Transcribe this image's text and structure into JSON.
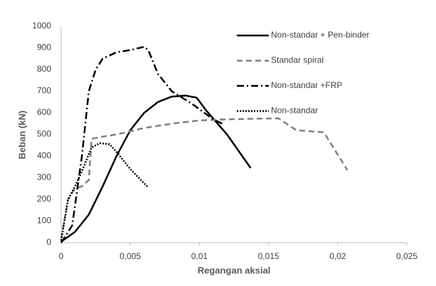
{
  "chart_data": {
    "type": "line",
    "x_label": "Regangan aksial",
    "y_label": "Beban (kN)",
    "xlim": [
      0,
      0.025
    ],
    "xticks": [
      0,
      {
        "value": 0.005,
        "label": "0,005"
      },
      {
        "value": 0.01,
        "label": "0,01"
      },
      {
        "value": 0.015,
        "label": "0,015"
      },
      {
        "value": 0.02,
        "label": "0,02"
      },
      {
        "value": 0.025,
        "label": "0,025"
      }
    ],
    "ylim": [
      0,
      1000
    ],
    "yticks": [
      0,
      100,
      200,
      300,
      400,
      500,
      600,
      700,
      800,
      900,
      1000
    ],
    "grid": false,
    "legend": "upper right",
    "series": [
      {
        "name": "Non-standar + Pen-binder",
        "color": "#000000",
        "style": "solid",
        "x": [
          0,
          0.001,
          0.002,
          0.003,
          0.004,
          0.005,
          0.006,
          0.007,
          0.008,
          0.009,
          0.0098,
          0.0105,
          0.012,
          0.0137
        ],
        "values": [
          5,
          50,
          130,
          260,
          400,
          520,
          600,
          650,
          675,
          680,
          670,
          610,
          500,
          345
        ]
      },
      {
        "name": "Standar spiral",
        "color": "#808080",
        "style": "dashed",
        "x": [
          0,
          0.0005,
          0.001,
          0.0015,
          0.002,
          0.0022,
          0.003,
          0.004,
          0.006,
          0.008,
          0.01,
          0.012,
          0.0157,
          0.017,
          0.019,
          0.0207
        ],
        "values": [
          20,
          200,
          250,
          260,
          290,
          480,
          490,
          500,
          530,
          550,
          565,
          570,
          575,
          520,
          510,
          335
        ]
      },
      {
        "name": "Non-standar +FRP",
        "color": "#000000",
        "style": "dashdot",
        "x": [
          0,
          0.0008,
          0.0015,
          0.002,
          0.0025,
          0.003,
          0.004,
          0.005,
          0.006,
          0.0063,
          0.007,
          0.008,
          0.0095,
          0.011,
          0.0118
        ],
        "values": [
          0,
          80,
          400,
          700,
          800,
          850,
          880,
          890,
          905,
          890,
          780,
          700,
          640,
          570,
          545
        ]
      },
      {
        "name": "Non-standar",
        "color": "#000000",
        "style": "dotted",
        "x": [
          0,
          0.0005,
          0.001,
          0.0015,
          0.0022,
          0.0028,
          0.0035,
          0.004,
          0.005,
          0.0063
        ],
        "values": [
          10,
          200,
          260,
          330,
          440,
          460,
          455,
          420,
          340,
          255
        ]
      }
    ]
  }
}
